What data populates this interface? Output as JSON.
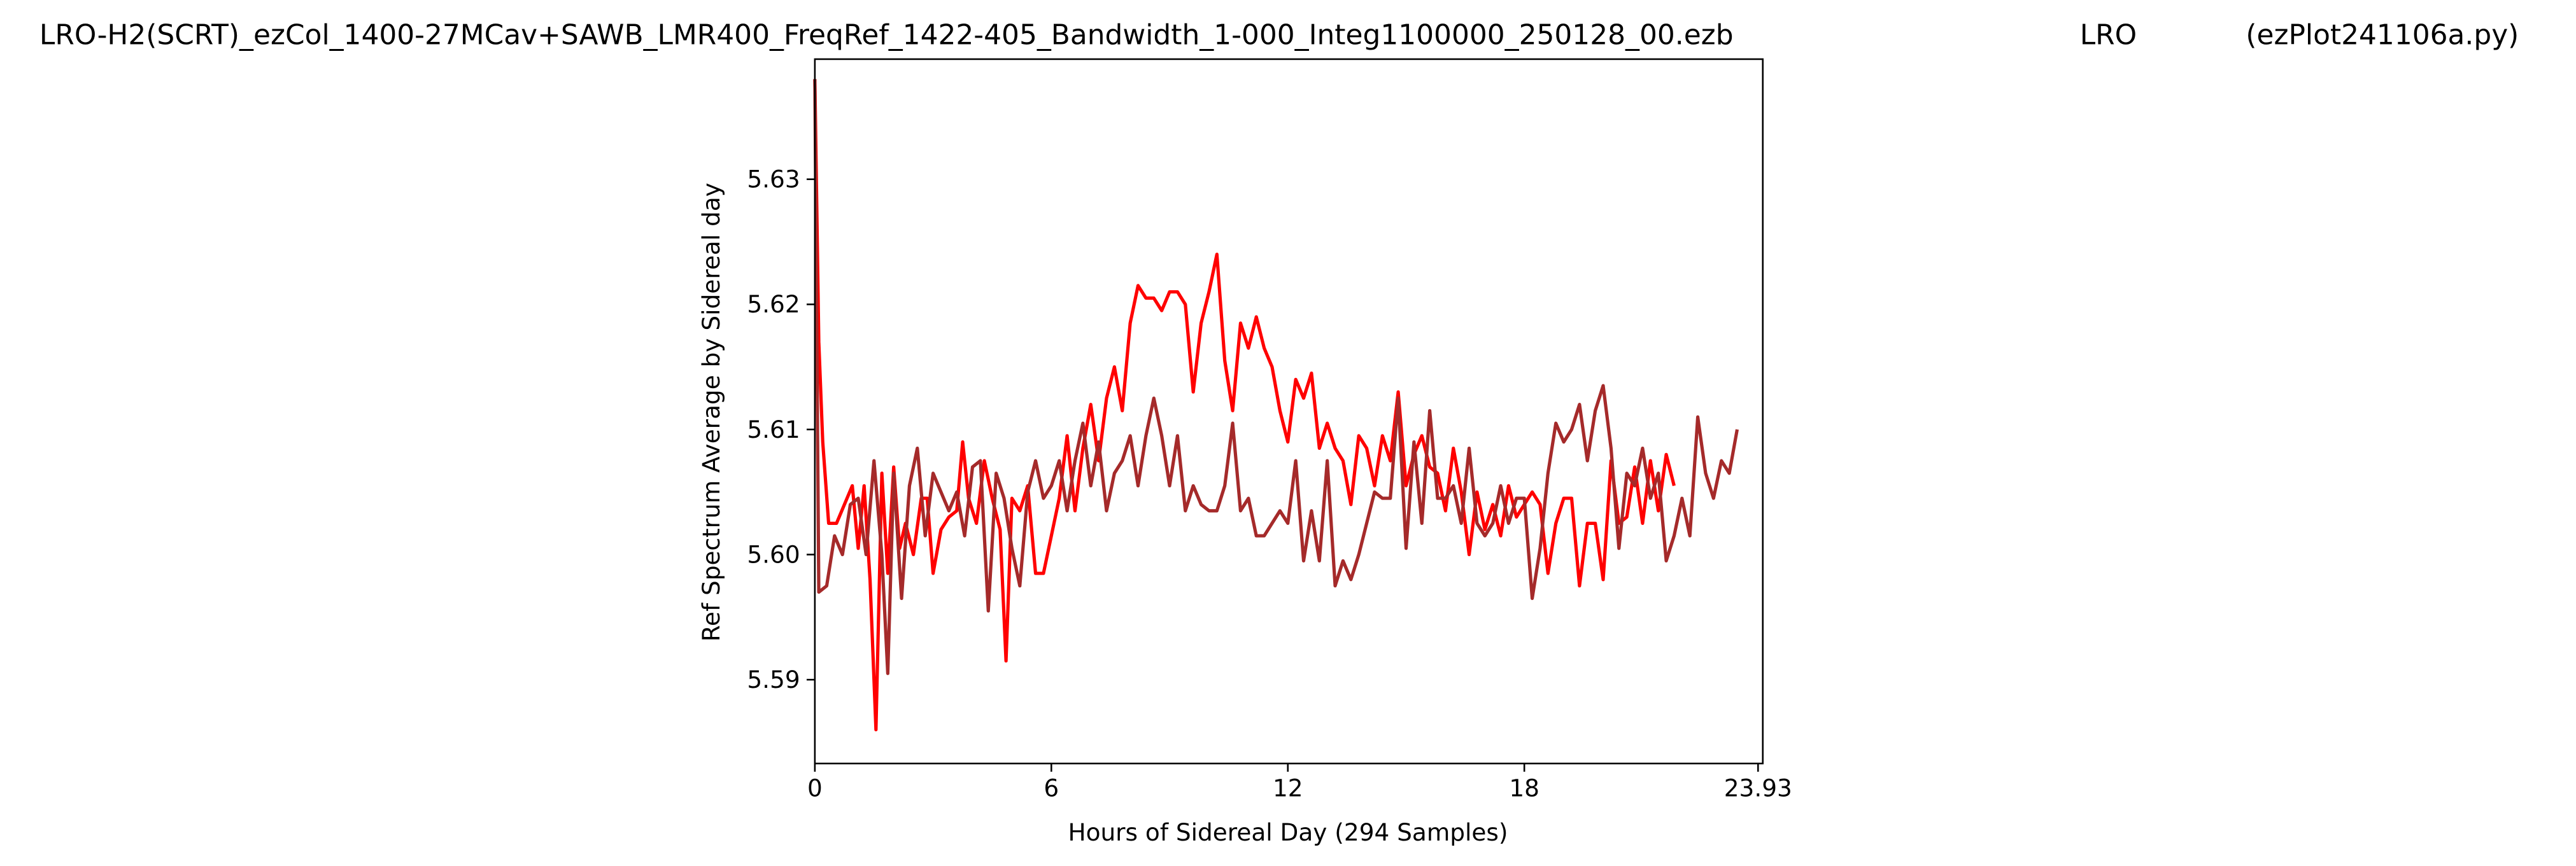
{
  "chart_data": {
    "type": "line",
    "title": "LRO-H2(SCRT)_ezCol_1400-27MCav+SAWB_LMR400_FreqRef_1422-405_Bandwidth_1-000_Integ1100000_250128_00.ezb",
    "title_center": "LRO",
    "title_right": "(ezPlot241106a.py)",
    "x_label": "Hours of Sidereal Day  (294 Samples)",
    "y_label": "Ref Spectrum Average by Sidereal day",
    "xlim": [
      0,
      24.05
    ],
    "ylim": [
      5.5833,
      5.6396
    ],
    "xticks": [
      0,
      6,
      12,
      18,
      23.93
    ],
    "yticks": [
      5.59,
      {
        "value": 5.6,
        "label": "5.60"
      },
      5.61,
      5.62,
      5.63
    ],
    "series": [
      {
        "color": "#ff0000",
        "x": [
          0,
          0.1,
          0.2,
          0.35,
          0.55,
          0.75,
          0.95,
          1.1,
          1.25,
          1.4,
          1.55,
          1.7,
          1.85,
          2.0,
          2.15,
          2.3,
          2.5,
          2.7,
          2.85,
          3.0,
          3.2,
          3.4,
          3.6,
          3.75,
          3.9,
          4.1,
          4.3,
          4.5,
          4.7,
          4.85,
          5.0,
          5.2,
          5.4,
          5.6,
          5.8,
          6.0,
          6.2,
          6.4,
          6.6,
          6.8,
          7.0,
          7.2,
          7.4,
          7.6,
          7.8,
          8.0,
          8.2,
          8.4,
          8.6,
          8.8,
          9.0,
          9.2,
          9.4,
          9.6,
          9.8,
          10.0,
          10.2,
          10.4,
          10.6,
          10.8,
          11.0,
          11.2,
          11.4,
          11.6,
          11.8,
          12.0,
          12.2,
          12.4,
          12.6,
          12.8,
          13.0,
          13.2,
          13.4,
          13.6,
          13.8,
          14.0,
          14.2,
          14.4,
          14.6,
          14.8,
          15.0,
          15.2,
          15.4,
          15.6,
          15.8,
          16.0,
          16.2,
          16.4,
          16.6,
          16.8,
          17.0,
          17.2,
          17.4,
          17.6,
          17.8,
          18.0,
          18.2,
          18.4,
          18.6,
          18.8,
          19.0,
          19.2,
          19.4,
          19.6,
          19.8,
          20.0,
          20.2,
          20.4,
          20.6,
          20.8,
          21.0,
          21.2,
          21.4,
          21.6,
          21.8
        ],
        "values": [
          5.638,
          5.617,
          5.609,
          5.6025,
          5.6025,
          5.604,
          5.6055,
          5.6005,
          5.6055,
          5.598,
          5.586,
          5.6065,
          5.5985,
          5.607,
          5.6005,
          5.6025,
          5.6,
          5.6045,
          5.6045,
          5.5985,
          5.602,
          5.603,
          5.6035,
          5.609,
          5.6045,
          5.6025,
          5.6075,
          5.6045,
          5.602,
          5.5915,
          5.6045,
          5.6035,
          5.6055,
          5.5985,
          5.5985,
          5.6015,
          5.6045,
          5.6095,
          5.6035,
          5.6085,
          5.612,
          5.6075,
          5.6125,
          5.615,
          5.6115,
          5.6185,
          5.6215,
          5.6205,
          5.6205,
          5.6195,
          5.621,
          5.621,
          5.62,
          5.613,
          5.6185,
          5.621,
          5.624,
          5.6155,
          5.6115,
          5.6185,
          5.6165,
          5.619,
          5.6165,
          5.615,
          5.6115,
          5.609,
          5.614,
          5.6125,
          5.6145,
          5.6085,
          5.6105,
          5.6085,
          5.6075,
          5.604,
          5.6095,
          5.6085,
          5.6055,
          5.6095,
          5.6075,
          5.613,
          5.6055,
          5.608,
          5.6095,
          5.607,
          5.6065,
          5.6035,
          5.6085,
          5.605,
          5.6,
          5.605,
          5.602,
          5.604,
          5.6015,
          5.6055,
          5.603,
          5.604,
          5.605,
          5.604,
          5.5985,
          5.6025,
          5.6045,
          5.6045,
          5.5975,
          5.6025,
          5.6025,
          5.598,
          5.6075,
          5.6025,
          5.603,
          5.607,
          5.6025,
          5.6075,
          5.6035,
          5.608,
          5.6055
        ]
      },
      {
        "color": "#a52a2a",
        "x": [
          0,
          0.1,
          0.3,
          0.5,
          0.7,
          0.9,
          1.1,
          1.3,
          1.5,
          1.7,
          1.85,
          2.0,
          2.2,
          2.4,
          2.6,
          2.8,
          3.0,
          3.2,
          3.4,
          3.6,
          3.8,
          4.0,
          4.2,
          4.4,
          4.6,
          4.8,
          5.0,
          5.2,
          5.4,
          5.6,
          5.8,
          6.0,
          6.2,
          6.4,
          6.6,
          6.8,
          7.0,
          7.2,
          7.4,
          7.6,
          7.8,
          8.0,
          8.2,
          8.4,
          8.6,
          8.8,
          9.0,
          9.2,
          9.4,
          9.6,
          9.8,
          10.0,
          10.2,
          10.4,
          10.6,
          10.8,
          11.0,
          11.2,
          11.4,
          11.6,
          11.8,
          12.0,
          12.2,
          12.4,
          12.6,
          12.8,
          13.0,
          13.2,
          13.4,
          13.6,
          13.8,
          14.0,
          14.2,
          14.4,
          14.6,
          14.8,
          15.0,
          15.2,
          15.4,
          15.6,
          15.8,
          16.0,
          16.2,
          16.4,
          16.6,
          16.8,
          17.0,
          17.2,
          17.4,
          17.6,
          17.8,
          18.0,
          18.2,
          18.4,
          18.6,
          18.8,
          19.0,
          19.2,
          19.4,
          19.6,
          19.8,
          20.0,
          20.2,
          20.4,
          20.6,
          20.8,
          21.0,
          21.2,
          21.4,
          21.6,
          21.8,
          22.0,
          22.2,
          22.4,
          22.6,
          22.8,
          23.0,
          23.2,
          23.4
        ],
        "values": [
          5.638,
          5.597,
          5.5975,
          5.6015,
          5.6,
          5.604,
          5.6045,
          5.6,
          5.6075,
          5.6,
          5.5905,
          5.6065,
          5.5965,
          5.6055,
          5.6085,
          5.6015,
          5.6065,
          5.605,
          5.6035,
          5.605,
          5.6015,
          5.607,
          5.6075,
          5.5955,
          5.6065,
          5.6045,
          5.6005,
          5.5975,
          5.605,
          5.6075,
          5.6045,
          5.6055,
          5.6075,
          5.6035,
          5.6075,
          5.6105,
          5.6055,
          5.609,
          5.6035,
          5.6065,
          5.6075,
          5.6095,
          5.6055,
          5.6095,
          5.6125,
          5.6095,
          5.6055,
          5.6095,
          5.6035,
          5.6055,
          5.604,
          5.6035,
          5.6035,
          5.6055,
          5.6105,
          5.6035,
          5.6045,
          5.6015,
          5.6015,
          5.6025,
          5.6035,
          5.6025,
          5.6075,
          5.5995,
          5.6035,
          5.5995,
          5.6075,
          5.5975,
          5.5995,
          5.598,
          5.6,
          5.6025,
          5.605,
          5.6045,
          5.6045,
          5.6125,
          5.6005,
          5.609,
          5.6025,
          5.6115,
          5.6045,
          5.6045,
          5.6055,
          5.6025,
          5.6085,
          5.6025,
          5.6015,
          5.6025,
          5.6055,
          5.6025,
          5.6045,
          5.6045,
          5.5965,
          5.6005,
          5.6065,
          5.6105,
          5.609,
          5.61,
          5.612,
          5.6075,
          5.6115,
          5.6135,
          5.6085,
          5.6005,
          5.6065,
          5.6055,
          5.6085,
          5.6045,
          5.6065,
          5.5995,
          5.6015,
          5.6045,
          5.6015,
          5.611,
          5.6065,
          5.6045,
          5.6075,
          5.6065,
          5.61
        ]
      }
    ]
  }
}
